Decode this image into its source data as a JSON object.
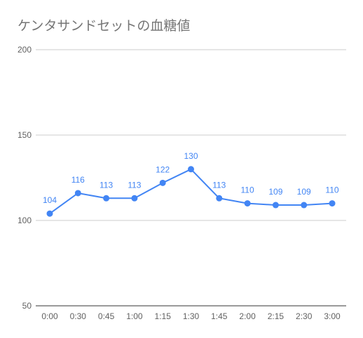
{
  "chart_data": {
    "type": "line",
    "title": "ケンタサンドセットの血糖値",
    "xlabel": "",
    "ylabel": "",
    "categories": [
      "0:00",
      "0:30",
      "0:45",
      "1:00",
      "1:15",
      "1:30",
      "1:45",
      "2:00",
      "2:15",
      "2:30",
      "3:00"
    ],
    "series": [
      {
        "values": [
          104,
          116,
          113,
          113,
          122,
          130,
          113,
          110,
          109,
          109,
          110
        ]
      }
    ],
    "data_labels": [
      "104",
      "116",
      "113",
      "113",
      "122",
      "130",
      "113",
      "110",
      "109",
      "109",
      "110"
    ],
    "ylim": [
      50,
      200
    ],
    "y_ticks": [
      50,
      100,
      150,
      200
    ],
    "y_tick_labels": [
      "50",
      "100",
      "150",
      "200"
    ],
    "grid": true,
    "legend": "none",
    "colors": {
      "line": "#4285f4",
      "grid": "#cccccc",
      "axis": "#333333",
      "title": "#757575",
      "tick": "#616161"
    }
  }
}
